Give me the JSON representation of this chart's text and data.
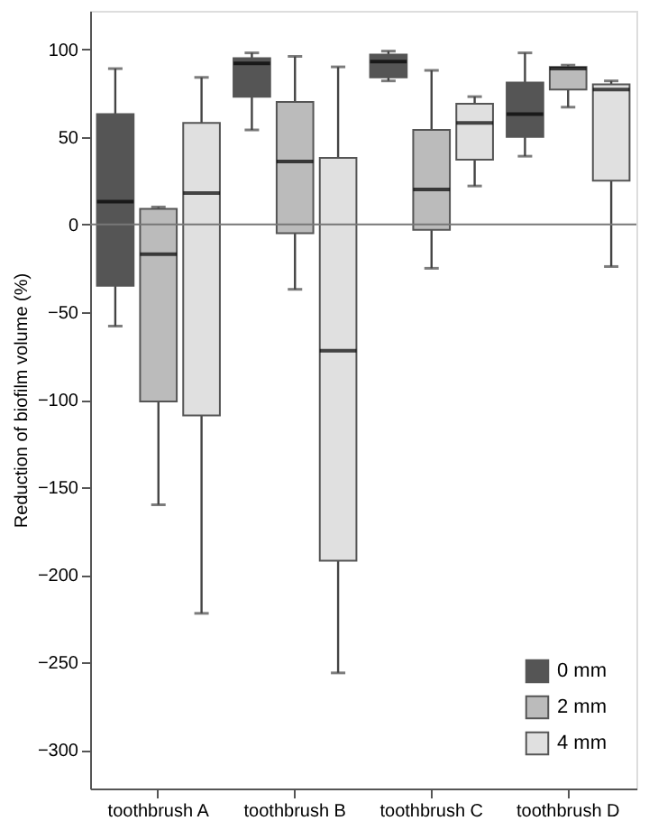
{
  "chart_data": {
    "type": "box",
    "ylabel": "Reduction of biofilm volume (%)",
    "categories": [
      "toothbrush A",
      "toothbrush B",
      "toothbrush C",
      "toothbrush D"
    ],
    "ylim": [
      -322,
      122
    ],
    "yticks": [
      -300,
      -250,
      -200,
      -150,
      -100,
      -50,
      0,
      50,
      100
    ],
    "grid": false,
    "legend": "bottom right",
    "ref_lines": [
      {
        "axis": "y",
        "value": 0,
        "color": "#777777"
      }
    ],
    "series": [
      {
        "name": "0 mm",
        "color": "#555555",
        "boxes": [
          {
            "low": -58,
            "q1": -35,
            "median": 13,
            "q3": 63,
            "high": 89
          },
          {
            "low": 54,
            "q1": 73,
            "median": 92,
            "q3": 95,
            "high": 98
          },
          {
            "low": 82,
            "q1": 84,
            "median": 93,
            "q3": 97,
            "high": 99
          },
          {
            "low": 39,
            "q1": 50,
            "median": 63,
            "q3": 81,
            "high": 98
          }
        ]
      },
      {
        "name": "2 mm",
        "color": "#bbbbbb",
        "boxes": [
          {
            "low": -160,
            "q1": -101,
            "median": -17,
            "q3": 9,
            "high": 10
          },
          {
            "low": -37,
            "q1": -5,
            "median": 36,
            "q3": 70,
            "high": 96
          },
          {
            "low": -25,
            "q1": -3,
            "median": 20,
            "q3": 54,
            "high": 88
          },
          {
            "low": 67,
            "q1": 77,
            "median": 89,
            "q3": 90,
            "high": 91
          }
        ]
      },
      {
        "name": "4 mm",
        "color": "#e0e0e0",
        "boxes": [
          {
            "low": -222,
            "q1": -109,
            "median": 18,
            "q3": 58,
            "high": 84
          },
          {
            "low": -256,
            "q1": -192,
            "median": -72,
            "q3": 38,
            "high": 90
          },
          {
            "low": 22,
            "q1": 37,
            "median": 58,
            "q3": 69,
            "high": 73
          },
          {
            "low": -24,
            "q1": 25,
            "median": 77,
            "q3": 80,
            "high": 82
          }
        ]
      }
    ]
  }
}
